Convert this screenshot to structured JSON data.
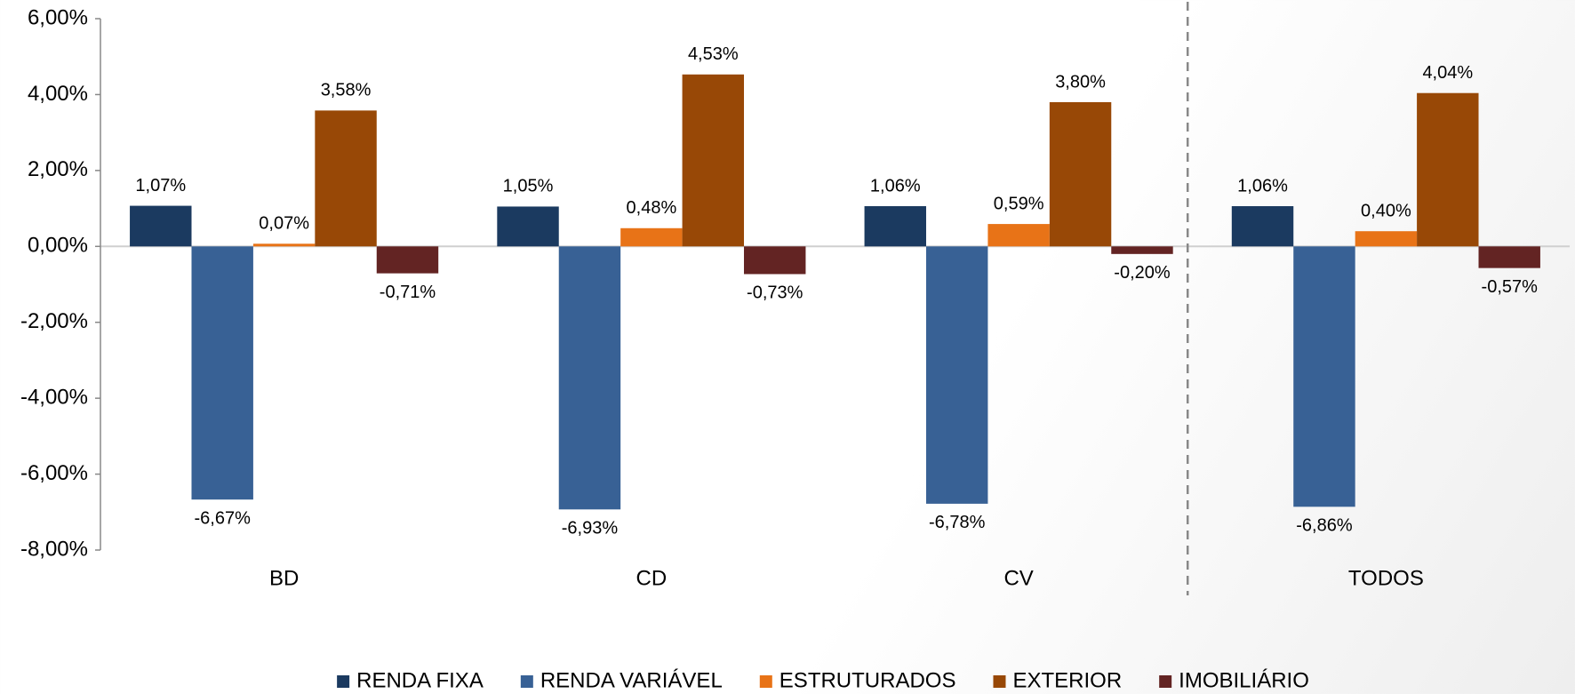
{
  "chart_data": {
    "type": "bar",
    "categories": [
      "BD",
      "CD",
      "CV",
      "TODOS"
    ],
    "series": [
      {
        "name": "RENDA FIXA",
        "color": "#1b3a60",
        "values": [
          1.07,
          1.05,
          1.06,
          1.06
        ],
        "value_labels": [
          "1,07%",
          "1,05%",
          "1,06%",
          "1,06%"
        ]
      },
      {
        "name": "RENDA VARIÁVEL",
        "color": "#386195",
        "values": [
          -6.67,
          -6.93,
          -6.78,
          -6.86
        ],
        "value_labels": [
          "-6,67%",
          "-6,93%",
          "-6,78%",
          "-6,86%"
        ]
      },
      {
        "name": "ESTRUTURADOS",
        "color": "#e87317",
        "values": [
          0.07,
          0.48,
          0.59,
          0.4
        ],
        "value_labels": [
          "0,07%",
          "0,48%",
          "0,59%",
          "0,40%"
        ]
      },
      {
        "name": "EXTERIOR",
        "color": "#984806",
        "values": [
          3.58,
          4.53,
          3.8,
          4.04
        ],
        "value_labels": [
          "3,58%",
          "4,53%",
          "3,80%",
          "4,04%"
        ]
      },
      {
        "name": "IMOBILIÁRIO",
        "color": "#632423",
        "values": [
          -0.71,
          -0.73,
          -0.2,
          -0.57
        ],
        "value_labels": [
          "-0,71%",
          "-0,73%",
          "-0,20%",
          "-0,57%"
        ]
      }
    ],
    "ylim": [
      -8,
      6
    ],
    "yticks": [
      {
        "value": -8,
        "label": "-8,00%"
      },
      {
        "value": -6,
        "label": "-6,00%"
      },
      {
        "value": -4,
        "label": "-4,00%"
      },
      {
        "value": -2,
        "label": "-2,00%"
      },
      {
        "value": 0,
        "label": "0,00%"
      },
      {
        "value": 2,
        "label": "2,00%"
      },
      {
        "value": 4,
        "label": "4,00%"
      },
      {
        "value": 6,
        "label": "6,00%"
      }
    ],
    "legend": "bottom"
  }
}
